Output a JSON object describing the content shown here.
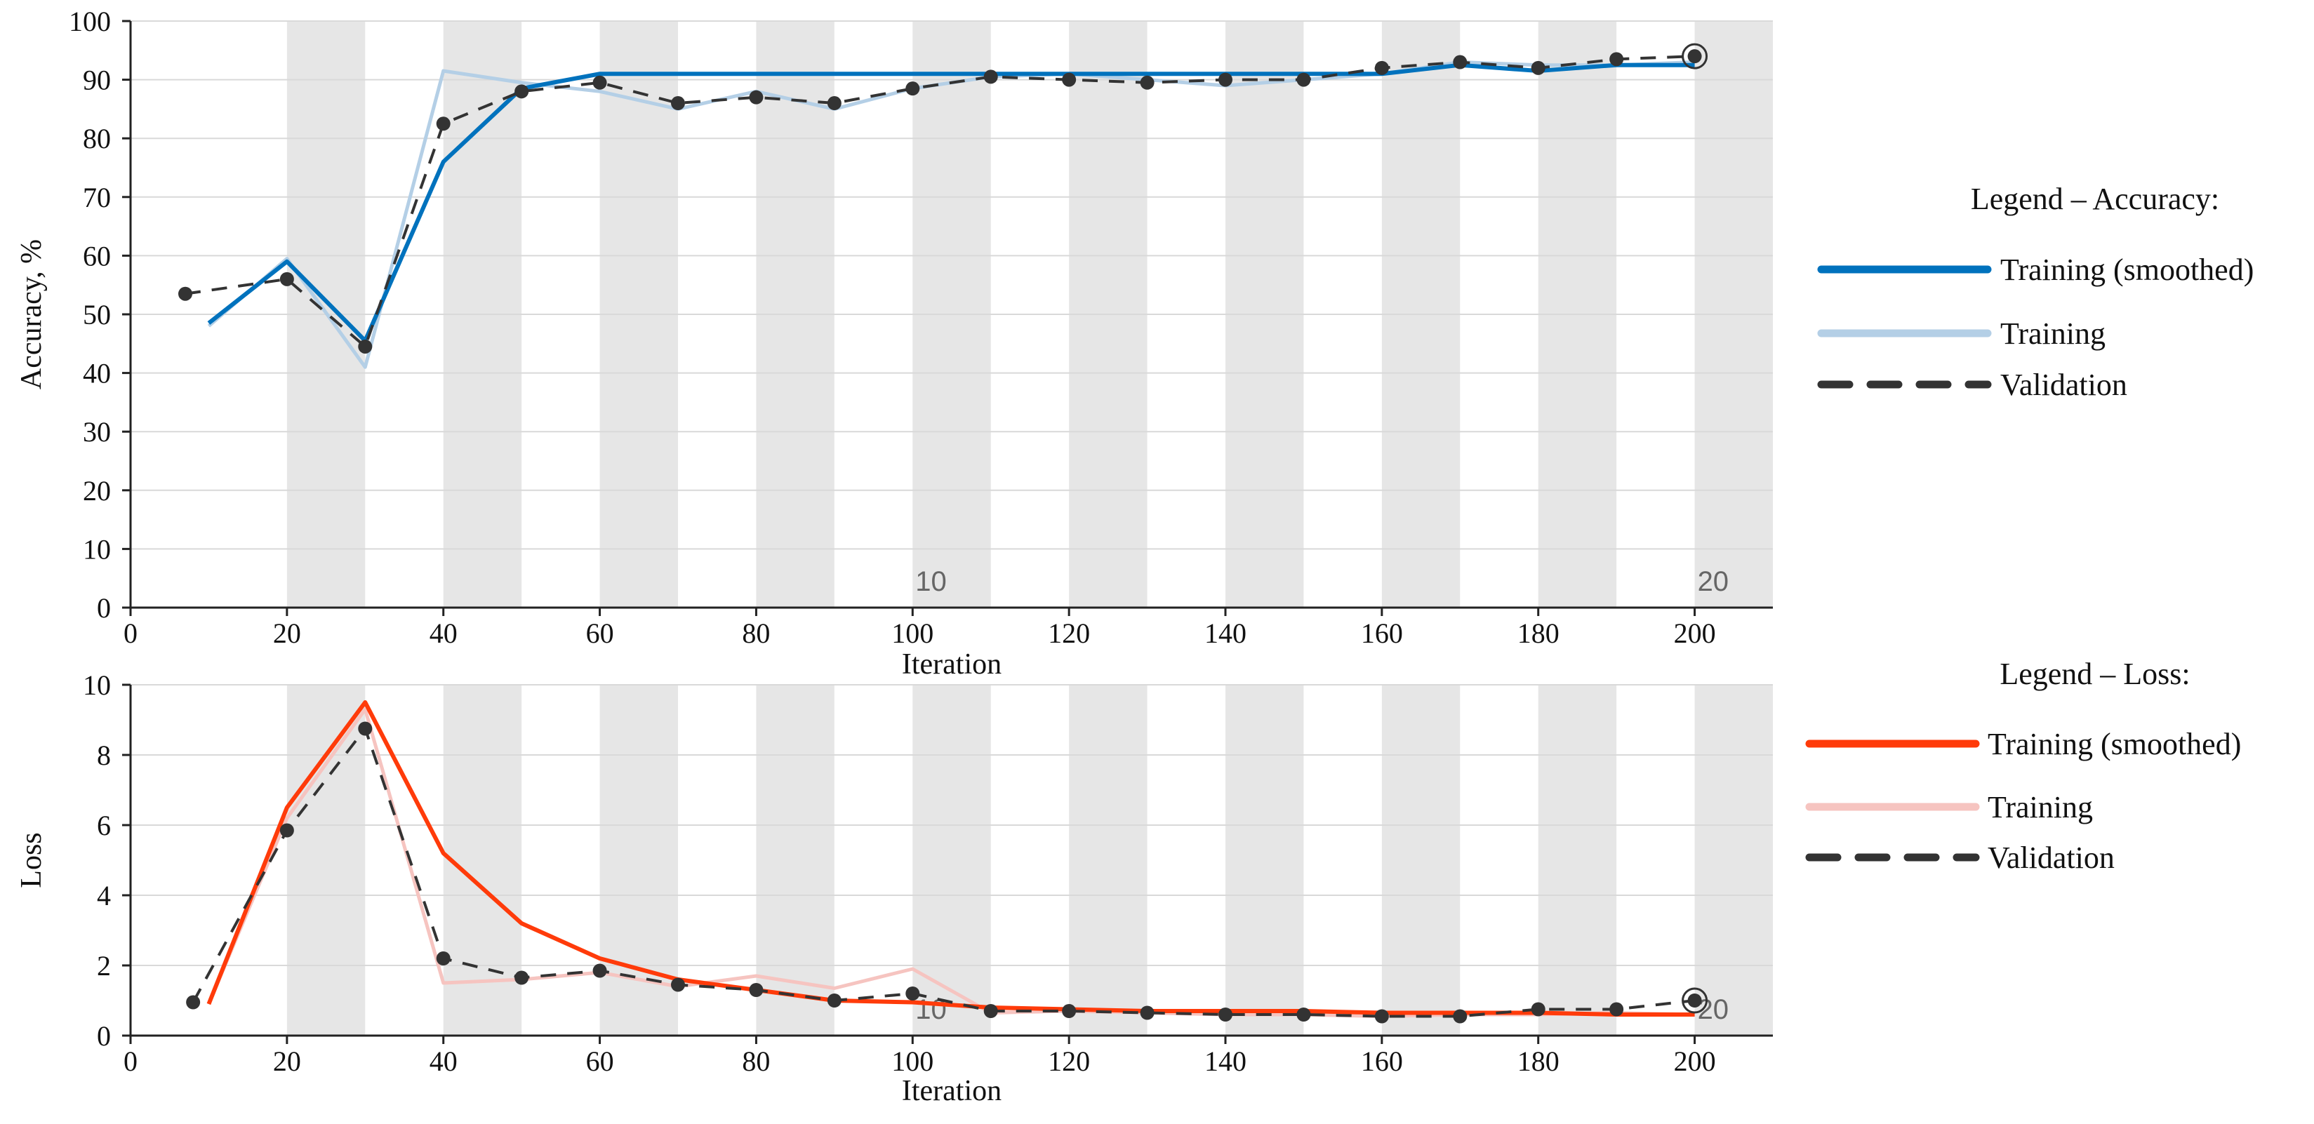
{
  "chart_data": [
    {
      "type": "line",
      "title": "",
      "xlabel": "Iteration",
      "ylabel": "Accuracy, %",
      "xlim": [
        0,
        210
      ],
      "ylim": [
        0,
        100
      ],
      "xticks": [
        0,
        20,
        40,
        60,
        80,
        100,
        120,
        140,
        160,
        180,
        200
      ],
      "yticks": [
        0,
        10,
        20,
        30,
        40,
        50,
        60,
        70,
        80,
        90,
        100
      ],
      "grid": true,
      "legend_position": "right",
      "legend_title": "Legend – Accuracy:",
      "epoch_labels": [
        {
          "x": 100,
          "label": "10"
        },
        {
          "x": 200,
          "label": "20"
        }
      ],
      "colors": {
        "smoothed": "#0072bd",
        "raw": "#b4cfe6",
        "validation": "#333333"
      },
      "series": [
        {
          "name": "Training (smoothed)",
          "x": [
            10,
            20,
            30,
            40,
            50,
            60,
            70,
            80,
            90,
            100,
            110,
            120,
            130,
            140,
            150,
            160,
            170,
            180,
            190,
            200
          ],
          "values": [
            48.5,
            59,
            45.5,
            76,
            88.5,
            91,
            91,
            91,
            91,
            91,
            91,
            91,
            91,
            91,
            91,
            91,
            92.5,
            91.5,
            92.5,
            92.5
          ]
        },
        {
          "name": "Training",
          "x": [
            10,
            20,
            30,
            40,
            50,
            60,
            70,
            80,
            90,
            100,
            110,
            120,
            130,
            140,
            150,
            160,
            170,
            180,
            190,
            200
          ],
          "values": [
            48,
            59.5,
            41,
            91.5,
            89.5,
            88,
            85,
            88,
            85,
            88.5,
            90.5,
            91,
            90,
            89,
            90,
            91,
            93,
            92.5,
            92.5,
            93
          ]
        },
        {
          "name": "Validation",
          "x": [
            7,
            20,
            30,
            40,
            50,
            60,
            70,
            80,
            90,
            100,
            110,
            120,
            130,
            140,
            150,
            160,
            170,
            180,
            190,
            200
          ],
          "values": [
            53.5,
            56,
            44.5,
            82.5,
            88,
            89.5,
            86,
            87,
            86,
            88.5,
            90.5,
            90,
            89.5,
            90,
            90,
            92,
            93,
            92,
            93.5,
            94
          ]
        }
      ]
    },
    {
      "type": "line",
      "title": "",
      "xlabel": "Iteration",
      "ylabel": "Loss",
      "xlim": [
        0,
        210
      ],
      "ylim": [
        0,
        10
      ],
      "xticks": [
        0,
        20,
        40,
        60,
        80,
        100,
        120,
        140,
        160,
        180,
        200
      ],
      "yticks": [
        0,
        2,
        4,
        6,
        8,
        10
      ],
      "grid": true,
      "legend_position": "right",
      "legend_title": "Legend – Loss:",
      "epoch_labels": [
        {
          "x": 100,
          "label": "10"
        },
        {
          "x": 200,
          "label": "20"
        }
      ],
      "colors": {
        "smoothed": "#ff3b0a",
        "raw": "#f6c4c0",
        "validation": "#333333"
      },
      "series": [
        {
          "name": "Training (smoothed)",
          "x": [
            10,
            20,
            30,
            40,
            50,
            60,
            70,
            80,
            90,
            100,
            110,
            120,
            130,
            140,
            150,
            160,
            170,
            180,
            190,
            200
          ],
          "values": [
            0.9,
            6.5,
            9.5,
            5.2,
            3.2,
            2.2,
            1.6,
            1.3,
            1.0,
            0.95,
            0.8,
            0.75,
            0.7,
            0.7,
            0.7,
            0.65,
            0.65,
            0.65,
            0.6,
            0.6
          ]
        },
        {
          "name": "Training",
          "x": [
            10,
            20,
            30,
            40,
            50,
            60,
            70,
            80,
            90,
            100,
            110,
            120,
            130,
            140,
            150,
            160,
            170,
            180,
            190,
            200
          ],
          "values": [
            0.9,
            6.2,
            9.3,
            1.5,
            1.6,
            1.8,
            1.4,
            1.7,
            1.35,
            1.9,
            0.65,
            0.7,
            0.65,
            0.6,
            0.6,
            0.55,
            0.6,
            0.6,
            0.65,
            0.6
          ]
        },
        {
          "name": "Validation",
          "x": [
            8,
            20,
            30,
            40,
            50,
            60,
            70,
            80,
            90,
            100,
            110,
            120,
            130,
            140,
            150,
            160,
            170,
            180,
            190,
            200
          ],
          "values": [
            0.95,
            5.85,
            8.75,
            2.2,
            1.65,
            1.85,
            1.45,
            1.3,
            1.0,
            1.2,
            0.7,
            0.7,
            0.65,
            0.6,
            0.6,
            0.55,
            0.55,
            0.75,
            0.75,
            1.0
          ]
        }
      ]
    }
  ]
}
